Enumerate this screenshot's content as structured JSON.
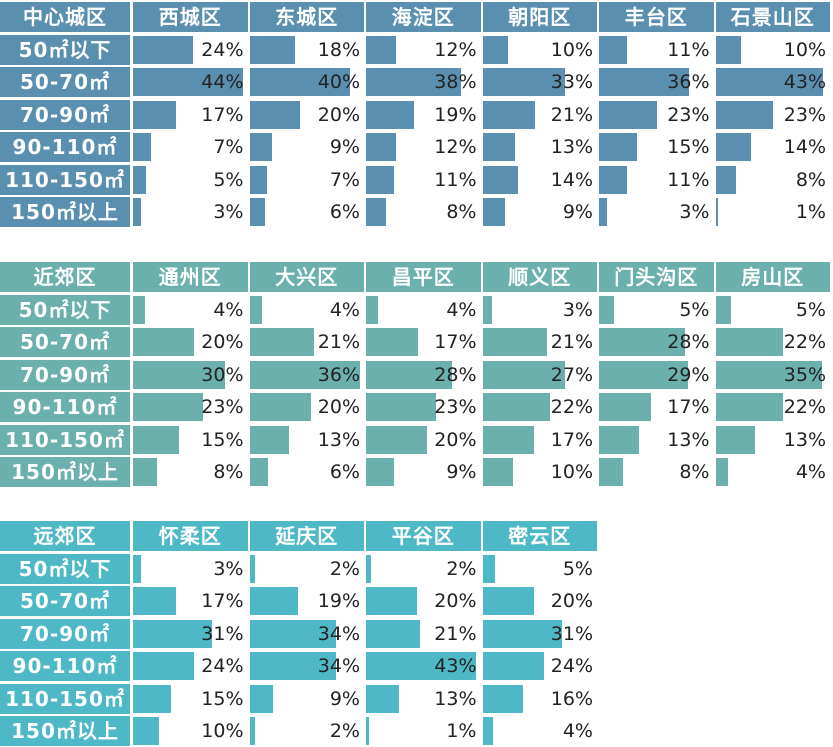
{
  "chart_data": [
    {
      "type": "table",
      "title": "",
      "corner_label": "中心城区",
      "color": "#5b8fb0",
      "columns": [
        "西城区",
        "东城区",
        "海淀区",
        "朝阳区",
        "丰台区",
        "石景山区"
      ],
      "rows": [
        "50㎡以下",
        "50-70㎡",
        "70-90㎡",
        "90-110㎡",
        "110-150㎡",
        "150㎡以上"
      ],
      "values": [
        [
          24,
          18,
          12,
          10,
          11,
          10
        ],
        [
          44,
          40,
          38,
          33,
          36,
          43
        ],
        [
          17,
          20,
          19,
          21,
          23,
          23
        ],
        [
          7,
          9,
          12,
          13,
          15,
          14
        ],
        [
          5,
          7,
          11,
          14,
          11,
          8
        ],
        [
          3,
          6,
          8,
          9,
          3,
          1
        ]
      ],
      "unit": "%",
      "xlim": [
        0,
        44
      ]
    },
    {
      "type": "table",
      "title": "",
      "corner_label": "近郊区",
      "color": "#6bb0ad",
      "columns": [
        "通州区",
        "大兴区",
        "昌平区",
        "顺义区",
        "门头沟区",
        "房山区"
      ],
      "rows": [
        "50㎡以下",
        "50-70㎡",
        "70-90㎡",
        "90-110㎡",
        "110-150㎡",
        "150㎡以上"
      ],
      "values": [
        [
          4,
          4,
          4,
          3,
          5,
          5
        ],
        [
          20,
          21,
          17,
          21,
          28,
          22
        ],
        [
          30,
          36,
          28,
          27,
          29,
          35
        ],
        [
          23,
          20,
          23,
          22,
          17,
          22
        ],
        [
          15,
          13,
          20,
          17,
          13,
          13
        ],
        [
          8,
          6,
          9,
          10,
          8,
          4
        ]
      ],
      "unit": "%",
      "xlim": [
        0,
        36
      ]
    },
    {
      "type": "table",
      "title": "",
      "corner_label": "远郊区",
      "color": "#4fb8c6",
      "columns": [
        "怀柔区",
        "延庆区",
        "平谷区",
        "密云区"
      ],
      "rows": [
        "50㎡以下",
        "50-70㎡",
        "70-90㎡",
        "90-110㎡",
        "110-150㎡",
        "150㎡以上"
      ],
      "values": [
        [
          3,
          2,
          2,
          5
        ],
        [
          17,
          19,
          20,
          20
        ],
        [
          31,
          34,
          21,
          31
        ],
        [
          24,
          34,
          43,
          24
        ],
        [
          15,
          9,
          13,
          16
        ],
        [
          10,
          2,
          1,
          4
        ]
      ],
      "unit": "%",
      "xlim": [
        0,
        43
      ]
    }
  ]
}
